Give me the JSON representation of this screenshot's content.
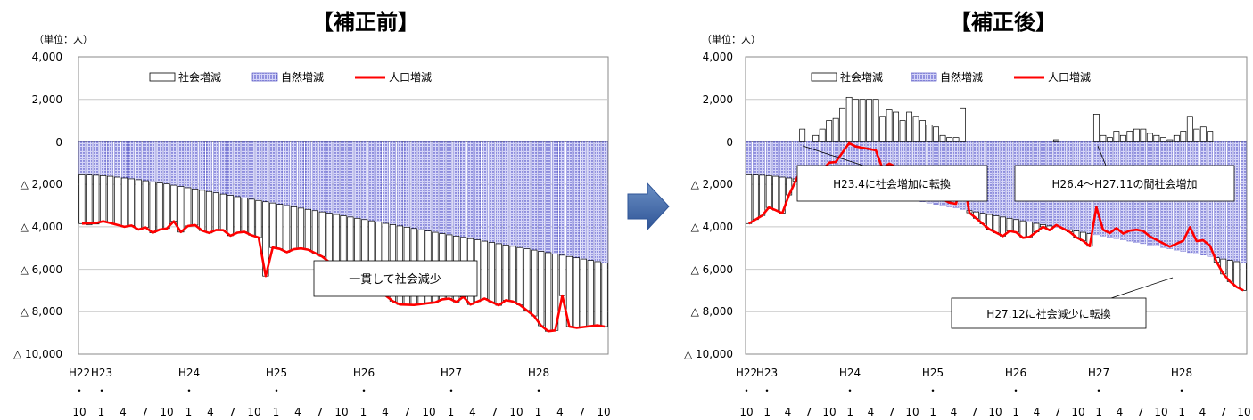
{
  "chart_data": [
    {
      "type": "bar",
      "title": "【補正前】",
      "unit_label": "（単位：人）",
      "y_tick_labels": [
        "4,000",
        "2,000",
        "0",
        "△ 2,000",
        "△ 4,000",
        "△ 6,000",
        "△ 8,000",
        "△ 10,000"
      ],
      "y_ticks": [
        4000,
        2000,
        0,
        -2000,
        -4000,
        -6000,
        -8000,
        -10000
      ],
      "ylim": [
        -10000,
        4000
      ],
      "grid": true,
      "legend_position": "top",
      "legend": [
        "社会増減",
        "自然増減",
        "人口増減"
      ],
      "year_labels": [
        "H22",
        "H23",
        "H24",
        "H25",
        "H26",
        "H27",
        "H28"
      ],
      "month_labels": [
        "10",
        "1",
        "4",
        "7",
        "10",
        "1",
        "4",
        "7",
        "10",
        "1",
        "4",
        "7",
        "10",
        "1",
        "4",
        "7",
        "10",
        "1",
        "4",
        "7",
        "10",
        "1",
        "4",
        "7",
        "10"
      ],
      "annotation": "一貫して社会減少",
      "series": [
        {
          "name": "自然増減",
          "values": [
            -1550,
            -1560,
            -1570,
            -1590,
            -1620,
            -1660,
            -1700,
            -1740,
            -1780,
            -1830,
            -1880,
            -1930,
            -1980,
            -2040,
            -2100,
            -2160,
            -2220,
            -2280,
            -2340,
            -2400,
            -2460,
            -2520,
            -2580,
            -2640,
            -2700,
            -2760,
            -2820,
            -2880,
            -2940,
            -3000,
            -3060,
            -3120,
            -3180,
            -3240,
            -3300,
            -3360,
            -3420,
            -3480,
            -3540,
            -3600,
            -3660,
            -3720,
            -3780,
            -3840,
            -3900,
            -3960,
            -4020,
            -4080,
            -4140,
            -4200,
            -4260,
            -4320,
            -4380,
            -4440,
            -4500,
            -4560,
            -4620,
            -4680,
            -4740,
            -4800,
            -4860,
            -4920,
            -4980,
            -5040,
            -5100,
            -5160,
            -5220,
            -5280,
            -5340,
            -5400,
            -5460,
            -5520,
            -5580,
            -5640,
            -5700
          ]
        },
        {
          "name": "社会増減",
          "values": [
            -2300,
            -2350,
            -2300,
            -2150,
            -2200,
            -2250,
            -2300,
            -2200,
            -2350,
            -2200,
            -2400,
            -2200,
            -2100,
            -1700,
            -2150,
            -1800,
            -1700,
            -1900,
            -1950,
            -1750,
            -1700,
            -1900,
            -1700,
            -1600,
            -1700,
            -1750,
            -3500,
            -2100,
            -2100,
            -2200,
            -2000,
            -1900,
            -1900,
            -2000,
            -2100,
            -2300,
            -2600,
            -2800,
            -3000,
            -3000,
            -3000,
            -3100,
            -2300,
            -3400,
            -3600,
            -3700,
            -3650,
            -3600,
            -3500,
            -3400,
            -3300,
            -3100,
            -3000,
            -3100,
            -2800,
            -3100,
            -2900,
            -2700,
            -2800,
            -2900,
            -2600,
            -2600,
            -2700,
            -2900,
            -3100,
            -3500,
            -3700,
            -3600,
            -1900,
            -3300,
            -3300,
            -3200,
            -3100,
            -3000,
            -3000
          ]
        },
        {
          "name": "人口増減",
          "values": [
            -3850,
            -3830,
            -3820,
            -3740,
            -3820,
            -3910,
            -4000,
            -3940,
            -4130,
            -4030,
            -4280,
            -4130,
            -4080,
            -3740,
            -4250,
            -3960,
            -3920,
            -4180,
            -4290,
            -4150,
            -4160,
            -4420,
            -4280,
            -4240,
            -4400,
            -4510,
            -6320,
            -4980,
            -5040,
            -5200,
            -5060,
            -5020,
            -5080,
            -5240,
            -5400,
            -5660,
            -6020,
            -6280,
            -6540,
            -6600,
            -6660,
            -6820,
            -6080,
            -7240,
            -7500,
            -7660,
            -7670,
            -7680,
            -7640,
            -7600,
            -7560,
            -7420,
            -7380,
            -7540,
            -7300,
            -7660,
            -7520,
            -7380,
            -7540,
            -7700,
            -7460,
            -7520,
            -7680,
            -7940,
            -8200,
            -8660,
            -8920,
            -8880,
            -7240,
            -8700,
            -8760,
            -8720,
            -8680,
            -8640,
            -8700
          ]
        }
      ]
    },
    {
      "type": "bar",
      "title": "【補正後】",
      "unit_label": "（単位：人）",
      "y_tick_labels": [
        "4,000",
        "2,000",
        "0",
        "△ 2,000",
        "△ 4,000",
        "△ 6,000",
        "△ 8,000",
        "△ 10,000"
      ],
      "y_ticks": [
        4000,
        2000,
        0,
        -2000,
        -4000,
        -6000,
        -8000,
        -10000
      ],
      "ylim": [
        -10000,
        4000
      ],
      "grid": true,
      "legend_position": "top",
      "legend": [
        "社会増減",
        "自然増減",
        "人口増減"
      ],
      "year_labels": [
        "H22",
        "H23",
        "H24",
        "H25",
        "H26",
        "H27",
        "H28"
      ],
      "month_labels": [
        "10",
        "1",
        "4",
        "7",
        "10",
        "1",
        "4",
        "7",
        "10",
        "1",
        "4",
        "7",
        "10",
        "1",
        "4",
        "7",
        "10",
        "1",
        "4",
        "7",
        "10",
        "1",
        "4",
        "7",
        "10"
      ],
      "annotations": [
        "H23.4に社会増加に転換",
        "H26.4～H27.11の間社会増加",
        "H27.12に社会減少に転換"
      ],
      "series": [
        {
          "name": "自然増減",
          "values": [
            -1550,
            -1560,
            -1570,
            -1590,
            -1620,
            -1660,
            -1700,
            -1740,
            -1780,
            -1830,
            -1880,
            -1930,
            -1980,
            -2040,
            -2100,
            -2160,
            -2220,
            -2280,
            -2340,
            -2400,
            -2460,
            -2520,
            -2580,
            -2640,
            -2700,
            -2760,
            -2820,
            -2880,
            -2940,
            -3000,
            -3060,
            -3120,
            -3180,
            -3240,
            -3300,
            -3360,
            -3420,
            -3480,
            -3540,
            -3600,
            -3660,
            -3720,
            -3780,
            -3840,
            -3900,
            -3960,
            -4020,
            -4080,
            -4140,
            -4200,
            -4260,
            -4320,
            -4380,
            -4440,
            -4500,
            -4560,
            -4620,
            -4680,
            -4740,
            -4800,
            -4860,
            -4920,
            -4980,
            -5040,
            -5100,
            -5160,
            -5220,
            -5280,
            -5340,
            -5400,
            -5460,
            -5520,
            -5580,
            -5640,
            -5700
          ]
        },
        {
          "name": "社会増減",
          "values": [
            -2300,
            -2100,
            -1900,
            -1500,
            -1600,
            -1700,
            -800,
            -100,
            600,
            -200,
            300,
            600,
            1000,
            1100,
            1600,
            2100,
            2000,
            2000,
            2000,
            2000,
            1200,
            1500,
            1400,
            1000,
            1400,
            1200,
            1000,
            800,
            700,
            300,
            200,
            200,
            1600,
            -100,
            -300,
            -500,
            -700,
            -800,
            -900,
            -600,
            -600,
            -800,
            -700,
            -400,
            -100,
            -200,
            100,
            0,
            -100,
            -300,
            -400,
            -600,
            1300,
            300,
            200,
            500,
            300,
            500,
            600,
            600,
            400,
            300,
            200,
            100,
            300,
            500,
            1200,
            600,
            700,
            500,
            -200,
            -700,
            -1000,
            -1200,
            -1300
          ]
        },
        {
          "name": "人口増減",
          "values": [
            -3850,
            -3660,
            -3470,
            -3090,
            -3220,
            -3360,
            -2500,
            -1840,
            -1180,
            -2030,
            -1580,
            -1330,
            -980,
            -940,
            -500,
            -60,
            -220,
            -280,
            -340,
            -400,
            -1260,
            -1020,
            -1180,
            -1640,
            -1300,
            -1560,
            -1820,
            -2080,
            -2240,
            -2700,
            -2860,
            -2920,
            -1580,
            -3340,
            -3600,
            -3860,
            -4120,
            -4280,
            -4440,
            -4200,
            -4260,
            -4520,
            -4480,
            -4240,
            -4000,
            -4160,
            -3920,
            -4080,
            -4240,
            -4500,
            -4660,
            -4920,
            -3080,
            -4140,
            -4300,
            -4060,
            -4320,
            -4180,
            -4140,
            -4200,
            -4460,
            -4620,
            -4780,
            -4940,
            -4800,
            -4660,
            -4020,
            -4680,
            -4640,
            -4900,
            -5660,
            -6220,
            -6580,
            -6840,
            -7000
          ]
        }
      ]
    }
  ]
}
